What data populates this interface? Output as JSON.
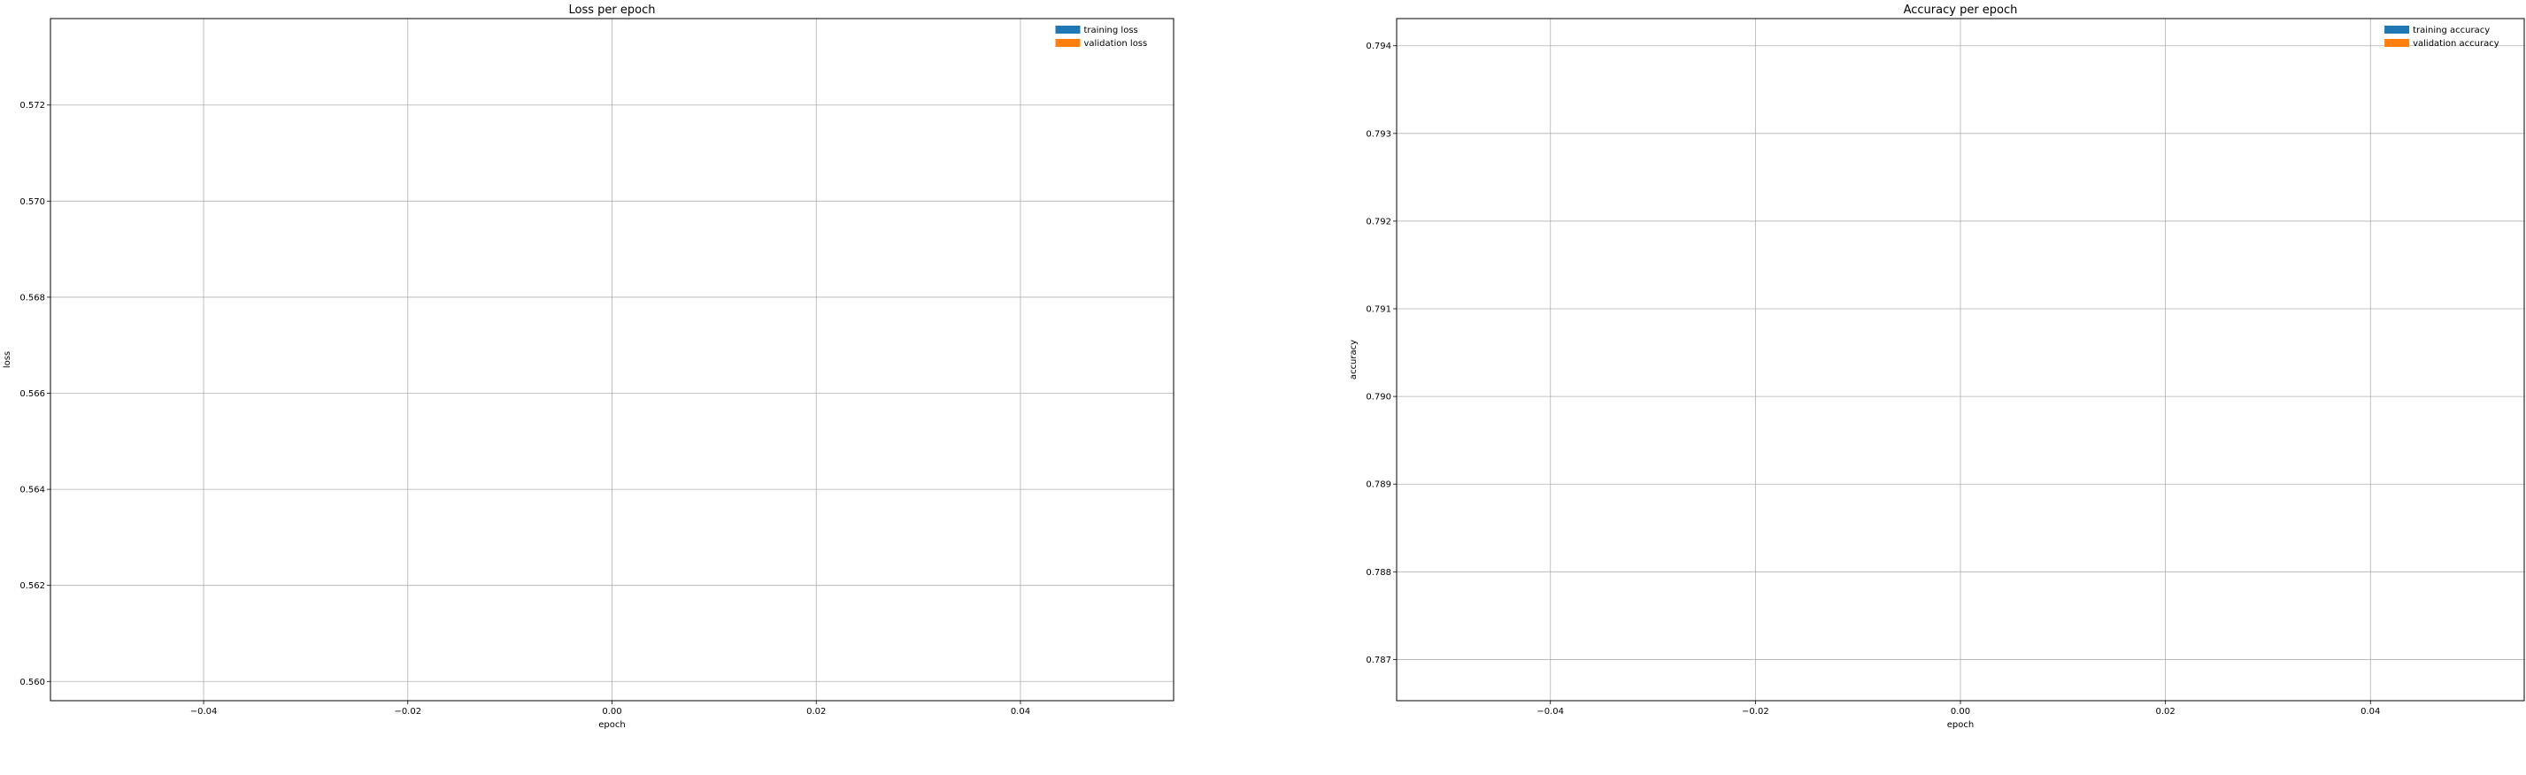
{
  "chart_data": [
    {
      "type": "line",
      "title": "Loss per epoch",
      "xlabel": "epoch",
      "ylabel": "loss",
      "xlim": [
        -0.055,
        0.055
      ],
      "ylim": [
        0.5596,
        0.5738
      ],
      "xticks": [
        -0.04,
        -0.02,
        0.0,
        0.02,
        0.04
      ],
      "xtick_labels": [
        "−0.04",
        "−0.02",
        "0.00",
        "0.02",
        "0.04"
      ],
      "yticks": [
        0.56,
        0.562,
        0.564,
        0.566,
        0.568,
        0.57,
        0.572
      ],
      "ytick_labels": [
        "0.560",
        "0.562",
        "0.564",
        "0.566",
        "0.568",
        "0.570",
        "0.572"
      ],
      "grid": true,
      "legend_position": "top-right",
      "series": [
        {
          "name": "training loss",
          "color": "#1f77b4",
          "x": [],
          "y": []
        },
        {
          "name": "validation loss",
          "color": "#ff7f0e",
          "x": [],
          "y": []
        }
      ]
    },
    {
      "type": "line",
      "title": "Accuracy per epoch",
      "xlabel": "epoch",
      "ylabel": "accuracy",
      "xlim": [
        -0.055,
        0.055
      ],
      "ylim": [
        0.78653,
        0.79431
      ],
      "xticks": [
        -0.04,
        -0.02,
        0.0,
        0.02,
        0.04
      ],
      "xtick_labels": [
        "−0.04",
        "−0.02",
        "0.00",
        "0.02",
        "0.04"
      ],
      "yticks": [
        0.787,
        0.788,
        0.789,
        0.79,
        0.791,
        0.792,
        0.793,
        0.794
      ],
      "ytick_labels": [
        "0.787",
        "0.788",
        "0.789",
        "0.790",
        "0.791",
        "0.792",
        "0.793",
        "0.794"
      ],
      "grid": true,
      "legend_position": "top-right",
      "series": [
        {
          "name": "training accuracy",
          "color": "#1f77b4",
          "x": [],
          "y": []
        },
        {
          "name": "validation accuracy",
          "color": "#ff7f0e",
          "x": [],
          "y": []
        }
      ]
    }
  ]
}
